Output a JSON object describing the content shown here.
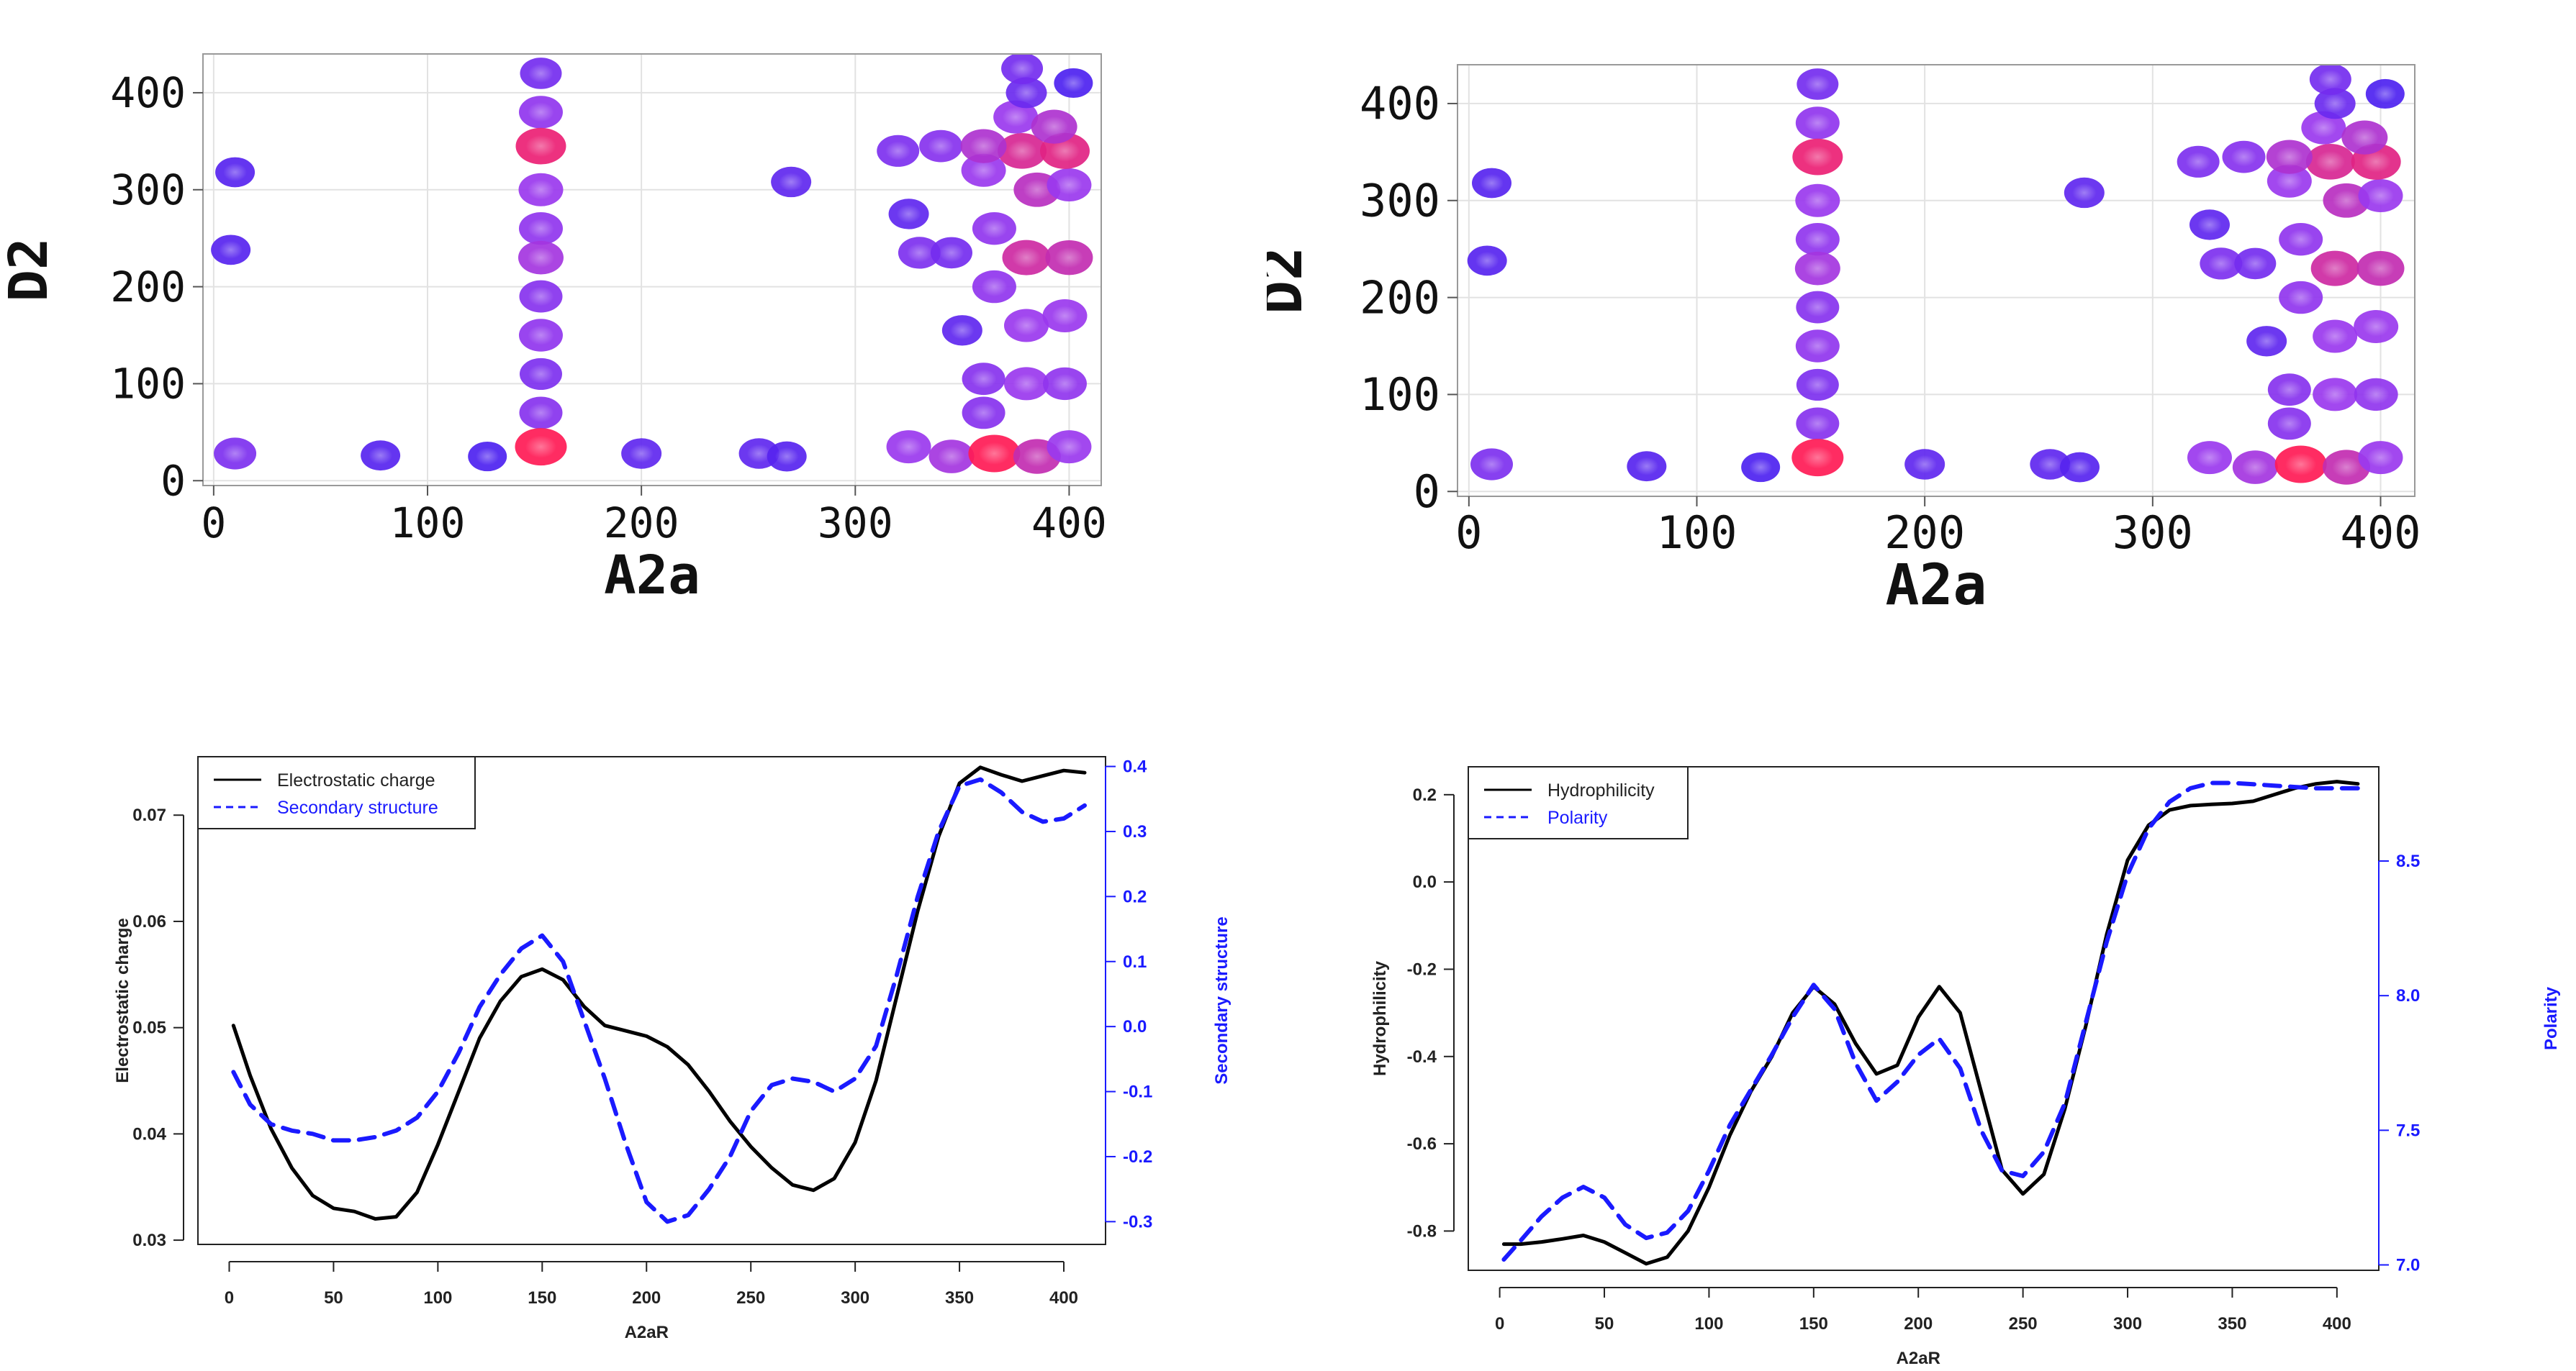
{
  "chart_data": [
    {
      "id": "hm1",
      "type": "heatmap",
      "xlabel": "A2a",
      "ylabel": "D2",
      "xlim": [
        -5,
        415
      ],
      "ylim": [
        -5,
        440
      ],
      "xticks": [
        0,
        100,
        200,
        300,
        400
      ],
      "yticks": [
        0,
        100,
        200,
        300,
        400
      ],
      "grid": true,
      "colors": {
        "low": "#3a1cf0",
        "mid": "#9a38ee",
        "high": "#ff1a55"
      },
      "points": [
        {
          "x": 10,
          "y": 318,
          "v": 0.15
        },
        {
          "x": 8,
          "y": 238,
          "v": 0.15
        },
        {
          "x": 10,
          "y": 28,
          "v": 0.35
        },
        {
          "x": 78,
          "y": 26,
          "v": 0.15
        },
        {
          "x": 128,
          "y": 25,
          "v": 0.1
        },
        {
          "x": 153,
          "y": 420,
          "v": 0.3
        },
        {
          "x": 153,
          "y": 380,
          "v": 0.45
        },
        {
          "x": 153,
          "y": 345,
          "v": 0.9
        },
        {
          "x": 153,
          "y": 300,
          "v": 0.5
        },
        {
          "x": 153,
          "y": 260,
          "v": 0.45
        },
        {
          "x": 153,
          "y": 230,
          "v": 0.55
        },
        {
          "x": 153,
          "y": 190,
          "v": 0.4
        },
        {
          "x": 153,
          "y": 150,
          "v": 0.45
        },
        {
          "x": 153,
          "y": 110,
          "v": 0.35
        },
        {
          "x": 153,
          "y": 70,
          "v": 0.4
        },
        {
          "x": 153,
          "y": 35,
          "v": 1.0
        },
        {
          "x": 200,
          "y": 28,
          "v": 0.2
        },
        {
          "x": 255,
          "y": 28,
          "v": 0.2
        },
        {
          "x": 268,
          "y": 25,
          "v": 0.15
        },
        {
          "x": 270,
          "y": 308,
          "v": 0.2
        },
        {
          "x": 320,
          "y": 340,
          "v": 0.35
        },
        {
          "x": 340,
          "y": 345,
          "v": 0.4
        },
        {
          "x": 325,
          "y": 275,
          "v": 0.2
        },
        {
          "x": 330,
          "y": 235,
          "v": 0.35
        },
        {
          "x": 345,
          "y": 235,
          "v": 0.3
        },
        {
          "x": 350,
          "y": 155,
          "v": 0.2
        },
        {
          "x": 325,
          "y": 35,
          "v": 0.5
        },
        {
          "x": 345,
          "y": 25,
          "v": 0.55
        },
        {
          "x": 365,
          "y": 28,
          "v": 1.0
        },
        {
          "x": 385,
          "y": 25,
          "v": 0.7
        },
        {
          "x": 400,
          "y": 35,
          "v": 0.5
        },
        {
          "x": 360,
          "y": 70,
          "v": 0.4
        },
        {
          "x": 380,
          "y": 100,
          "v": 0.5
        },
        {
          "x": 398,
          "y": 100,
          "v": 0.45
        },
        {
          "x": 360,
          "y": 105,
          "v": 0.4
        },
        {
          "x": 380,
          "y": 160,
          "v": 0.5
        },
        {
          "x": 398,
          "y": 170,
          "v": 0.5
        },
        {
          "x": 365,
          "y": 200,
          "v": 0.45
        },
        {
          "x": 380,
          "y": 230,
          "v": 0.75
        },
        {
          "x": 400,
          "y": 230,
          "v": 0.7
        },
        {
          "x": 365,
          "y": 260,
          "v": 0.45
        },
        {
          "x": 385,
          "y": 300,
          "v": 0.65
        },
        {
          "x": 400,
          "y": 305,
          "v": 0.5
        },
        {
          "x": 360,
          "y": 320,
          "v": 0.5
        },
        {
          "x": 378,
          "y": 340,
          "v": 0.8
        },
        {
          "x": 398,
          "y": 340,
          "v": 0.85
        },
        {
          "x": 360,
          "y": 345,
          "v": 0.6
        },
        {
          "x": 375,
          "y": 375,
          "v": 0.5
        },
        {
          "x": 393,
          "y": 365,
          "v": 0.6
        },
        {
          "x": 380,
          "y": 400,
          "v": 0.25
        },
        {
          "x": 378,
          "y": 425,
          "v": 0.3
        },
        {
          "x": 402,
          "y": 410,
          "v": 0.1
        }
      ]
    },
    {
      "id": "hm2",
      "type": "heatmap",
      "xlabel": "A2a",
      "ylabel": "D2",
      "xlim": [
        -5,
        415
      ],
      "ylim": [
        -5,
        440
      ],
      "xticks": [
        0,
        100,
        200,
        300,
        400
      ],
      "yticks": [
        0,
        100,
        200,
        300,
        400
      ],
      "grid": true,
      "colors": {
        "low": "#3a1cf0",
        "mid": "#9a38ee",
        "high": "#ff1a55"
      },
      "points": [
        {
          "x": 10,
          "y": 318,
          "v": 0.15
        },
        {
          "x": 8,
          "y": 238,
          "v": 0.15
        },
        {
          "x": 10,
          "y": 28,
          "v": 0.35
        },
        {
          "x": 78,
          "y": 26,
          "v": 0.15
        },
        {
          "x": 128,
          "y": 25,
          "v": 0.1
        },
        {
          "x": 153,
          "y": 420,
          "v": 0.3
        },
        {
          "x": 153,
          "y": 380,
          "v": 0.45
        },
        {
          "x": 153,
          "y": 345,
          "v": 0.9
        },
        {
          "x": 153,
          "y": 300,
          "v": 0.5
        },
        {
          "x": 153,
          "y": 260,
          "v": 0.45
        },
        {
          "x": 153,
          "y": 230,
          "v": 0.55
        },
        {
          "x": 153,
          "y": 190,
          "v": 0.4
        },
        {
          "x": 153,
          "y": 150,
          "v": 0.45
        },
        {
          "x": 153,
          "y": 110,
          "v": 0.35
        },
        {
          "x": 153,
          "y": 70,
          "v": 0.4
        },
        {
          "x": 153,
          "y": 35,
          "v": 1.0
        },
        {
          "x": 200,
          "y": 28,
          "v": 0.2
        },
        {
          "x": 255,
          "y": 28,
          "v": 0.2
        },
        {
          "x": 268,
          "y": 25,
          "v": 0.15
        },
        {
          "x": 270,
          "y": 308,
          "v": 0.2
        },
        {
          "x": 320,
          "y": 340,
          "v": 0.35
        },
        {
          "x": 340,
          "y": 345,
          "v": 0.4
        },
        {
          "x": 325,
          "y": 275,
          "v": 0.2
        },
        {
          "x": 330,
          "y": 235,
          "v": 0.35
        },
        {
          "x": 345,
          "y": 235,
          "v": 0.3
        },
        {
          "x": 350,
          "y": 155,
          "v": 0.2
        },
        {
          "x": 325,
          "y": 35,
          "v": 0.5
        },
        {
          "x": 345,
          "y": 25,
          "v": 0.55
        },
        {
          "x": 365,
          "y": 28,
          "v": 1.0
        },
        {
          "x": 385,
          "y": 25,
          "v": 0.7
        },
        {
          "x": 400,
          "y": 35,
          "v": 0.5
        },
        {
          "x": 360,
          "y": 70,
          "v": 0.4
        },
        {
          "x": 380,
          "y": 100,
          "v": 0.5
        },
        {
          "x": 398,
          "y": 100,
          "v": 0.45
        },
        {
          "x": 360,
          "y": 105,
          "v": 0.4
        },
        {
          "x": 380,
          "y": 160,
          "v": 0.5
        },
        {
          "x": 398,
          "y": 170,
          "v": 0.5
        },
        {
          "x": 365,
          "y": 200,
          "v": 0.45
        },
        {
          "x": 380,
          "y": 230,
          "v": 0.75
        },
        {
          "x": 400,
          "y": 230,
          "v": 0.7
        },
        {
          "x": 365,
          "y": 260,
          "v": 0.45
        },
        {
          "x": 385,
          "y": 300,
          "v": 0.65
        },
        {
          "x": 400,
          "y": 305,
          "v": 0.5
        },
        {
          "x": 360,
          "y": 320,
          "v": 0.5
        },
        {
          "x": 378,
          "y": 340,
          "v": 0.8
        },
        {
          "x": 398,
          "y": 340,
          "v": 0.85
        },
        {
          "x": 360,
          "y": 345,
          "v": 0.6
        },
        {
          "x": 375,
          "y": 375,
          "v": 0.5
        },
        {
          "x": 393,
          "y": 365,
          "v": 0.6
        },
        {
          "x": 380,
          "y": 400,
          "v": 0.25
        },
        {
          "x": 378,
          "y": 425,
          "v": 0.3
        },
        {
          "x": 402,
          "y": 410,
          "v": 0.1
        }
      ]
    },
    {
      "id": "lc1",
      "type": "line",
      "xlabel": "A2aR",
      "xlim": [
        -15,
        420
      ],
      "xticks": [
        0,
        50,
        100,
        150,
        200,
        250,
        300,
        350,
        400
      ],
      "left_axis": {
        "label": "Electrostatic charge",
        "ylim": [
          0.0296,
          0.0755
        ],
        "ticks": [
          "0.03",
          "0.04",
          "0.05",
          "0.06",
          "0.07"
        ],
        "tick_values": [
          0.03,
          0.04,
          0.05,
          0.06,
          0.07
        ]
      },
      "right_axis": {
        "label": "Secondary structure",
        "ylim": [
          -0.335,
          0.415
        ],
        "ticks": [
          "-0.3",
          "-0.2",
          "-0.1",
          "0.0",
          "0.1",
          "0.2",
          "0.3",
          "0.4"
        ],
        "tick_values": [
          -0.3,
          -0.2,
          -0.1,
          0.0,
          0.1,
          0.2,
          0.3,
          0.4
        ],
        "color": "#1a1aff"
      },
      "legend": {
        "position": "top-left",
        "entries": [
          "Electrostatic charge",
          "Secondary structure"
        ]
      },
      "series": [
        {
          "name": "Electrostatic charge",
          "axis": "left",
          "style": "solid",
          "color": "#000000",
          "x": [
            2,
            10,
            20,
            30,
            40,
            50,
            60,
            70,
            80,
            90,
            100,
            110,
            120,
            130,
            140,
            150,
            160,
            170,
            180,
            190,
            200,
            210,
            220,
            230,
            240,
            250,
            260,
            270,
            280,
            290,
            300,
            310,
            320,
            330,
            340,
            350,
            360,
            370,
            380,
            390,
            400,
            410
          ],
          "y": [
            0.0502,
            0.0455,
            0.0405,
            0.0368,
            0.0342,
            0.033,
            0.0327,
            0.032,
            0.0322,
            0.0345,
            0.039,
            0.044,
            0.049,
            0.0525,
            0.0548,
            0.0555,
            0.0545,
            0.052,
            0.0502,
            0.0497,
            0.0492,
            0.0482,
            0.0465,
            0.044,
            0.0412,
            0.0388,
            0.0368,
            0.0352,
            0.0347,
            0.0358,
            0.0392,
            0.045,
            0.053,
            0.061,
            0.068,
            0.073,
            0.0745,
            0.0738,
            0.0732,
            0.0737,
            0.0742,
            0.074
          ]
        },
        {
          "name": "Secondary structure",
          "axis": "right",
          "style": "dashed",
          "color": "#1a1aff",
          "x": [
            2,
            10,
            20,
            30,
            40,
            50,
            60,
            70,
            80,
            90,
            100,
            110,
            120,
            130,
            140,
            150,
            160,
            170,
            180,
            190,
            200,
            210,
            220,
            230,
            240,
            250,
            260,
            270,
            280,
            290,
            300,
            310,
            320,
            330,
            340,
            350,
            360,
            370,
            380,
            390,
            400,
            410
          ],
          "y": [
            -0.07,
            -0.12,
            -0.15,
            -0.16,
            -0.165,
            -0.175,
            -0.175,
            -0.17,
            -0.16,
            -0.14,
            -0.1,
            -0.04,
            0.03,
            0.08,
            0.12,
            0.14,
            0.1,
            0.01,
            -0.08,
            -0.18,
            -0.27,
            -0.3,
            -0.29,
            -0.25,
            -0.2,
            -0.13,
            -0.09,
            -0.08,
            -0.085,
            -0.1,
            -0.08,
            -0.03,
            0.08,
            0.2,
            0.3,
            0.37,
            0.38,
            0.36,
            0.33,
            0.315,
            0.32,
            0.34
          ]
        }
      ]
    },
    {
      "id": "lc2",
      "type": "line",
      "xlabel": "A2aR",
      "xlim": [
        -15,
        420
      ],
      "xticks": [
        0,
        50,
        100,
        150,
        200,
        250,
        300,
        350,
        400
      ],
      "left_axis": {
        "label": "Hydrophilicity",
        "ylim": [
          -0.89,
          0.264
        ],
        "ticks": [
          "-0.8",
          "-0.6",
          "-0.4",
          "-0.2",
          "0.0",
          "0.2"
        ],
        "tick_values": [
          -0.8,
          -0.6,
          -0.4,
          -0.2,
          0.0,
          0.2
        ]
      },
      "right_axis": {
        "label": "Polarity",
        "ylim": [
          6.98,
          8.85
        ],
        "ticks": [
          "7.0",
          "7.5",
          "8.0",
          "8.5"
        ],
        "tick_values": [
          7.0,
          7.5,
          8.0,
          8.5
        ],
        "color": "#1a1aff"
      },
      "legend": {
        "position": "top-left",
        "entries": [
          "Hydrophilicity",
          "Polarity"
        ]
      },
      "series": [
        {
          "name": "Hydrophilicity",
          "axis": "left",
          "style": "solid",
          "color": "#000000",
          "x": [
            2,
            10,
            20,
            30,
            40,
            50,
            60,
            70,
            80,
            90,
            100,
            110,
            120,
            130,
            140,
            150,
            160,
            170,
            180,
            190,
            200,
            210,
            220,
            230,
            240,
            250,
            260,
            270,
            280,
            290,
            300,
            310,
            320,
            330,
            340,
            350,
            360,
            370,
            380,
            390,
            400,
            410
          ],
          "y": [
            -0.83,
            -0.83,
            -0.825,
            -0.818,
            -0.81,
            -0.825,
            -0.85,
            -0.875,
            -0.86,
            -0.8,
            -0.7,
            -0.58,
            -0.48,
            -0.4,
            -0.3,
            -0.24,
            -0.28,
            -0.37,
            -0.44,
            -0.42,
            -0.31,
            -0.24,
            -0.3,
            -0.48,
            -0.66,
            -0.715,
            -0.67,
            -0.52,
            -0.33,
            -0.12,
            0.05,
            0.13,
            0.165,
            0.175,
            0.178,
            0.18,
            0.185,
            0.2,
            0.215,
            0.225,
            0.23,
            0.225
          ]
        },
        {
          "name": "Polarity",
          "axis": "right",
          "style": "dashed",
          "color": "#1a1aff",
          "x": [
            2,
            10,
            20,
            30,
            40,
            50,
            60,
            70,
            80,
            90,
            100,
            110,
            120,
            130,
            140,
            150,
            160,
            170,
            180,
            190,
            200,
            210,
            220,
            230,
            240,
            250,
            260,
            270,
            280,
            290,
            300,
            310,
            320,
            330,
            340,
            350,
            360,
            370,
            380,
            390,
            400,
            410
          ],
          "y": [
            7.02,
            7.09,
            7.18,
            7.25,
            7.29,
            7.25,
            7.15,
            7.1,
            7.12,
            7.2,
            7.35,
            7.52,
            7.65,
            7.78,
            7.92,
            8.04,
            7.95,
            7.75,
            7.61,
            7.68,
            7.78,
            7.84,
            7.73,
            7.5,
            7.35,
            7.33,
            7.42,
            7.6,
            7.9,
            8.2,
            8.45,
            8.62,
            8.72,
            8.77,
            8.79,
            8.79,
            8.785,
            8.78,
            8.775,
            8.77,
            8.77,
            8.77
          ]
        }
      ]
    }
  ]
}
